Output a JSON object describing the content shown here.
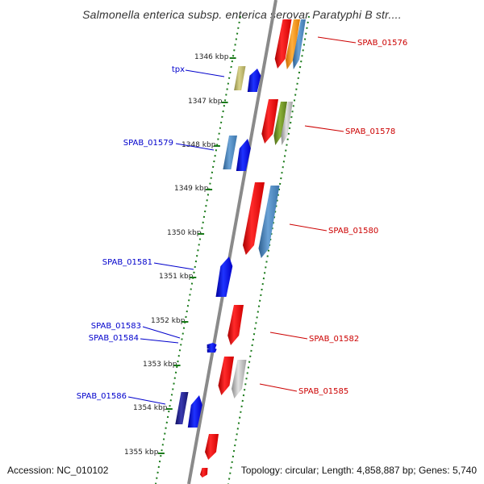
{
  "title": "Salmonella enterica subsp. enterica serovar Paratyphi B str....",
  "kbp_ticks": [
    "1346 kbp",
    "1347 kbp",
    "1348 kbp",
    "1349 kbp",
    "1350 kbp",
    "1351 kbp",
    "1352 kbp",
    "1353 kbp",
    "1354 kbp",
    "1355 kbp"
  ],
  "labels_left": [
    "tpx",
    "SPAB_01579",
    "SPAB_01581",
    "SPAB_01583",
    "SPAB_01584",
    "SPAB_01586"
  ],
  "labels_right": [
    "SPAB_01576",
    "SPAB_01578",
    "SPAB_01580",
    "SPAB_01582",
    "SPAB_01585"
  ],
  "colors": {
    "forward_blue": "#0a1aff",
    "reverse_red": "#ff1010",
    "steel_blue": "#4a86c0",
    "khaki": "#bdb76b",
    "olive": "#6b8e23",
    "orange": "#ff9a1a",
    "gray": "#b8b8b8",
    "navy": "#1a1a80",
    "tick_green": "#1a7a1a",
    "label_blue": "#0000cc",
    "label_red": "#cc0000",
    "backbone": "#8a8a8a"
  },
  "footer": {
    "accession": "Accession: NC_010102",
    "summary": "Topology: circular; Length: 4,858,887 bp; Genes: 5,740"
  }
}
